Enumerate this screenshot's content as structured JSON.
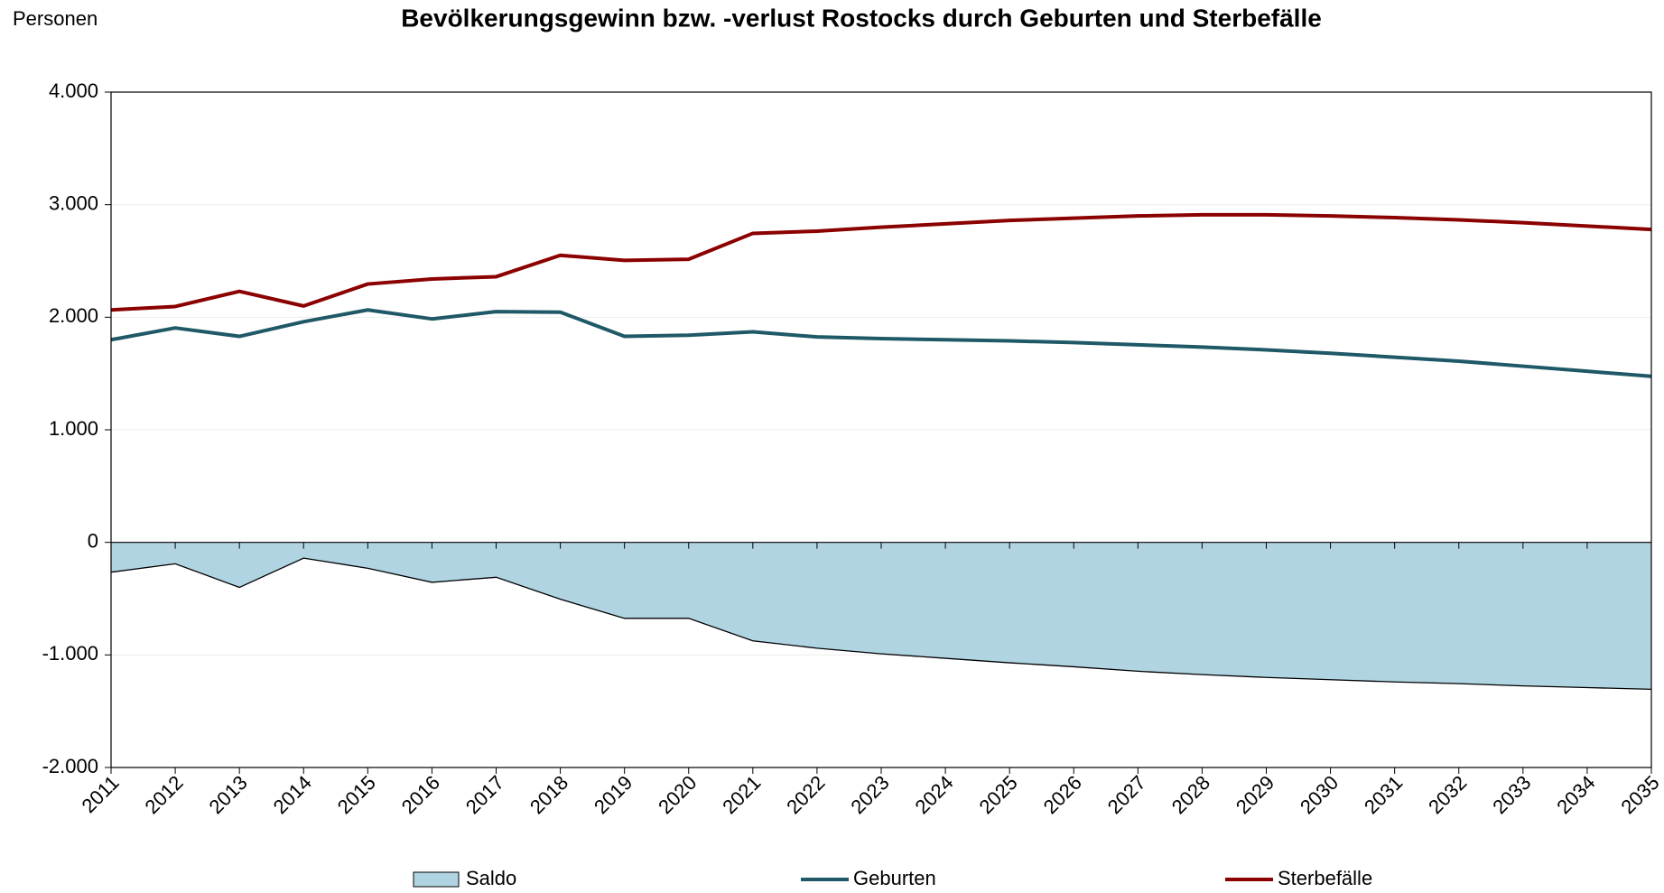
{
  "chart_data": {
    "type": "line",
    "title": "Bevölkerungsgewinn bzw. -verlust Rostocks durch Geburten und Sterbefälle",
    "y_label": "Personen",
    "categories": [
      "2011",
      "2012",
      "2013",
      "2014",
      "2015",
      "2016",
      "2017",
      "2018",
      "2019",
      "2020",
      "2021",
      "2022",
      "2023",
      "2024",
      "2025",
      "2026",
      "2027",
      "2028",
      "2029",
      "2030",
      "2031",
      "2032",
      "2033",
      "2034",
      "2035"
    ],
    "series": [
      {
        "name": "Saldo",
        "kind": "area",
        "color": "#b0d4e2",
        "values": [
          -265,
          -190,
          -400,
          -140,
          -230,
          -355,
          -310,
          -505,
          -675,
          -675,
          -875,
          -940,
          -990,
          -1030,
          -1070,
          -1105,
          -1145,
          -1175,
          -1200,
          -1220,
          -1240,
          -1255,
          -1275,
          -1290,
          -1305
        ]
      },
      {
        "name": "Geburten",
        "kind": "line",
        "color": "#1f5866",
        "values": [
          1800,
          1905,
          1830,
          1960,
          2065,
          1985,
          2050,
          2045,
          1830,
          1840,
          1870,
          1825,
          1810,
          1800,
          1790,
          1775,
          1755,
          1735,
          1710,
          1680,
          1645,
          1610,
          1565,
          1520,
          1475
        ]
      },
      {
        "name": "Sterbefälle",
        "kind": "line",
        "color": "#8b0000",
        "values": [
          2065,
          2095,
          2230,
          2100,
          2295,
          2340,
          2360,
          2550,
          2505,
          2515,
          2745,
          2765,
          2800,
          2830,
          2860,
          2880,
          2900,
          2910,
          2910,
          2900,
          2885,
          2865,
          2840,
          2810,
          2780
        ]
      }
    ],
    "ylim": [
      -2000,
      4000
    ],
    "yticks": [
      {
        "value": -2000,
        "label": "-2.000"
      },
      {
        "value": -1000,
        "label": "-1.000"
      },
      0,
      {
        "value": 1000,
        "label": "1.000"
      },
      {
        "value": 2000,
        "label": "2.000"
      },
      {
        "value": 3000,
        "label": "3.000"
      },
      {
        "value": 4000,
        "label": "4.000"
      }
    ],
    "grid": true,
    "legend": "bottom"
  }
}
